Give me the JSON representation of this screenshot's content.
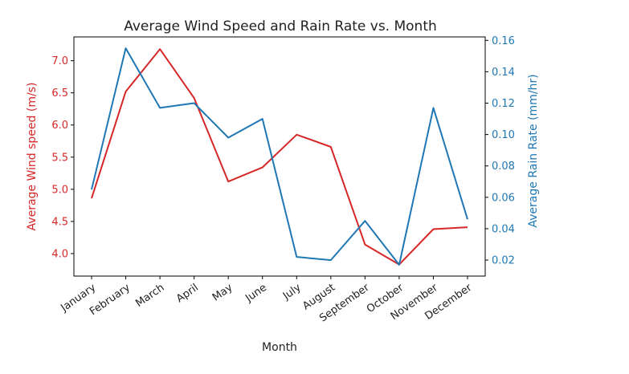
{
  "chart_data": {
    "type": "line",
    "title": "Average Wind Speed and Rain Rate vs. Month",
    "xlabel": "Month",
    "categories": [
      "January",
      "February",
      "March",
      "April",
      "May",
      "June",
      "July",
      "August",
      "September",
      "October",
      "November",
      "December"
    ],
    "series": [
      {
        "axis": "left",
        "ylabel": "Average Wind speed (m/s)",
        "color": "#d62728",
        "values": [
          4.86,
          6.52,
          7.18,
          6.42,
          5.12,
          5.34,
          5.85,
          5.66,
          4.14,
          3.83,
          4.38,
          4.41
        ]
      },
      {
        "axis": "right",
        "ylabel": "Average Rain Rate (mm/hr)",
        "color": "#1f77b4",
        "values": [
          0.065,
          0.155,
          0.117,
          0.12,
          0.098,
          0.11,
          0.022,
          0.02,
          0.045,
          0.017,
          0.117,
          0.046
        ]
      }
    ],
    "y_left": {
      "lim": [
        3.65,
        7.37
      ],
      "ticks": [
        "4.0",
        "4.5",
        "5.0",
        "5.5",
        "6.0",
        "6.5",
        "7.0"
      ]
    },
    "y_right": {
      "lim": [
        0.0098,
        0.1622
      ],
      "ticks": [
        "0.02",
        "0.04",
        "0.06",
        "0.08",
        "0.10",
        "0.12",
        "0.14",
        "0.16"
      ]
    },
    "grid": false
  }
}
